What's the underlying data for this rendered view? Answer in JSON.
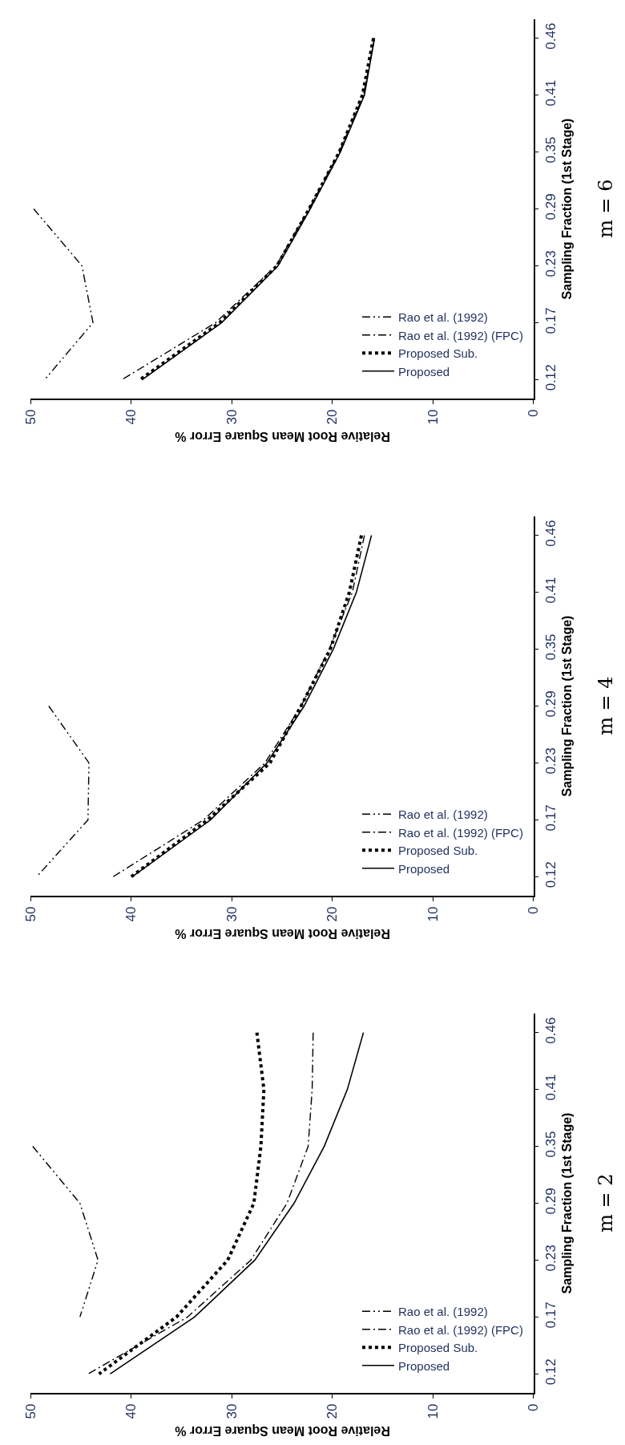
{
  "chart_data": [
    {
      "type": "line",
      "orientation": "horizontal",
      "annotations": [
        "m = 6"
      ],
      "ylabel": "Sampling Fraction (1st Stage)",
      "xlabel": "Relative Root Mean Square Error %",
      "categories": [
        "0.46",
        "0.41",
        "0.35",
        "0.29",
        "0.23",
        "0.17",
        "0.12"
      ],
      "xlim": [
        50,
        0
      ],
      "xticks": [
        50,
        40,
        30,
        20,
        10,
        0
      ],
      "grid": false,
      "legend": "bottom right",
      "series": [
        {
          "name": "Rao et al. (1992)",
          "color": "#000000",
          "line_style": "dashdotdot",
          "values": [
            null,
            null,
            null,
            49.7,
            44.9,
            43.8,
            48.6
          ]
        },
        {
          "name": "Rao et al. (1992) (FPC)",
          "color": "#000000",
          "line_style": "dashdot",
          "values": [
            15.8,
            16.9,
            19.3,
            22.3,
            25.6,
            31.6,
            40.9
          ]
        },
        {
          "name": "Proposed Sub.",
          "color": "#000000",
          "line_style": "dotted",
          "values": [
            15.9,
            17.0,
            19.3,
            22.3,
            25.5,
            31.2,
            39.1
          ]
        },
        {
          "name": "Proposed",
          "color": "#000000",
          "line_style": "solid",
          "values": [
            15.8,
            16.8,
            19.2,
            22.2,
            25.4,
            31.0,
            38.9
          ]
        }
      ]
    },
    {
      "type": "line",
      "orientation": "horizontal",
      "annotations": [
        "m = 4"
      ],
      "ylabel": "Sampling Fraction (1st Stage)",
      "xlabel": "Relative Root Mean Square Error %",
      "categories": [
        "0.46",
        "0.41",
        "0.35",
        "0.29",
        "0.23",
        "0.17",
        "0.12"
      ],
      "xlim": [
        50,
        0
      ],
      "xticks": [
        50,
        40,
        30,
        20,
        10,
        0
      ],
      "grid": false,
      "legend": "bottom right",
      "series": [
        {
          "name": "Rao et al. (1992)",
          "color": "#000000",
          "line_style": "dashdotdot",
          "values": [
            null,
            null,
            null,
            48.2,
            44.2,
            44.3,
            49.4
          ]
        },
        {
          "name": "Rao et al. (1992) (FPC)",
          "color": "#000000",
          "line_style": "dashdot",
          "values": [
            16.8,
            18.0,
            20.3,
            23.1,
            26.7,
            32.8,
            41.8
          ]
        },
        {
          "name": "Proposed Sub.",
          "color": "#000000",
          "line_style": "dotted",
          "values": [
            17.1,
            18.3,
            20.2,
            23.1,
            26.2,
            32.4,
            40.0
          ]
        },
        {
          "name": "Proposed",
          "color": "#000000",
          "line_style": "solid",
          "values": [
            16.1,
            17.6,
            19.9,
            22.8,
            26.5,
            32.1,
            39.9
          ]
        }
      ]
    },
    {
      "type": "line",
      "orientation": "horizontal",
      "annotations": [
        "m = 2"
      ],
      "ylabel": "Sampling Fraction (1st Stage)",
      "xlabel": "Relative Root Mean Square Error %",
      "categories": [
        "0.46",
        "0.41",
        "0.35",
        "0.29",
        "0.23",
        "0.17",
        "0.12"
      ],
      "xlim": [
        50,
        0
      ],
      "xticks": [
        50,
        40,
        30,
        20,
        10,
        0
      ],
      "grid": false,
      "legend": "bottom right",
      "series": [
        {
          "name": "Rao et al. (1992)",
          "color": "#000000",
          "line_style": "dashdotdot",
          "values": [
            null,
            null,
            49.8,
            45.1,
            43.3,
            45.1,
            null
          ]
        },
        {
          "name": "Rao et al. (1992) (FPC)",
          "color": "#000000",
          "line_style": "dashdot",
          "values": [
            21.9,
            22.0,
            22.4,
            24.5,
            28.1,
            34.4,
            44.3
          ]
        },
        {
          "name": "Proposed Sub.",
          "color": "#000000",
          "line_style": "dotted",
          "values": [
            27.5,
            26.8,
            27.1,
            27.8,
            30.4,
            35.5,
            43.2
          ]
        },
        {
          "name": "Proposed",
          "color": "#000000",
          "line_style": "solid",
          "values": [
            16.9,
            18.5,
            20.8,
            23.8,
            27.7,
            33.7,
            42.1
          ]
        }
      ]
    }
  ]
}
